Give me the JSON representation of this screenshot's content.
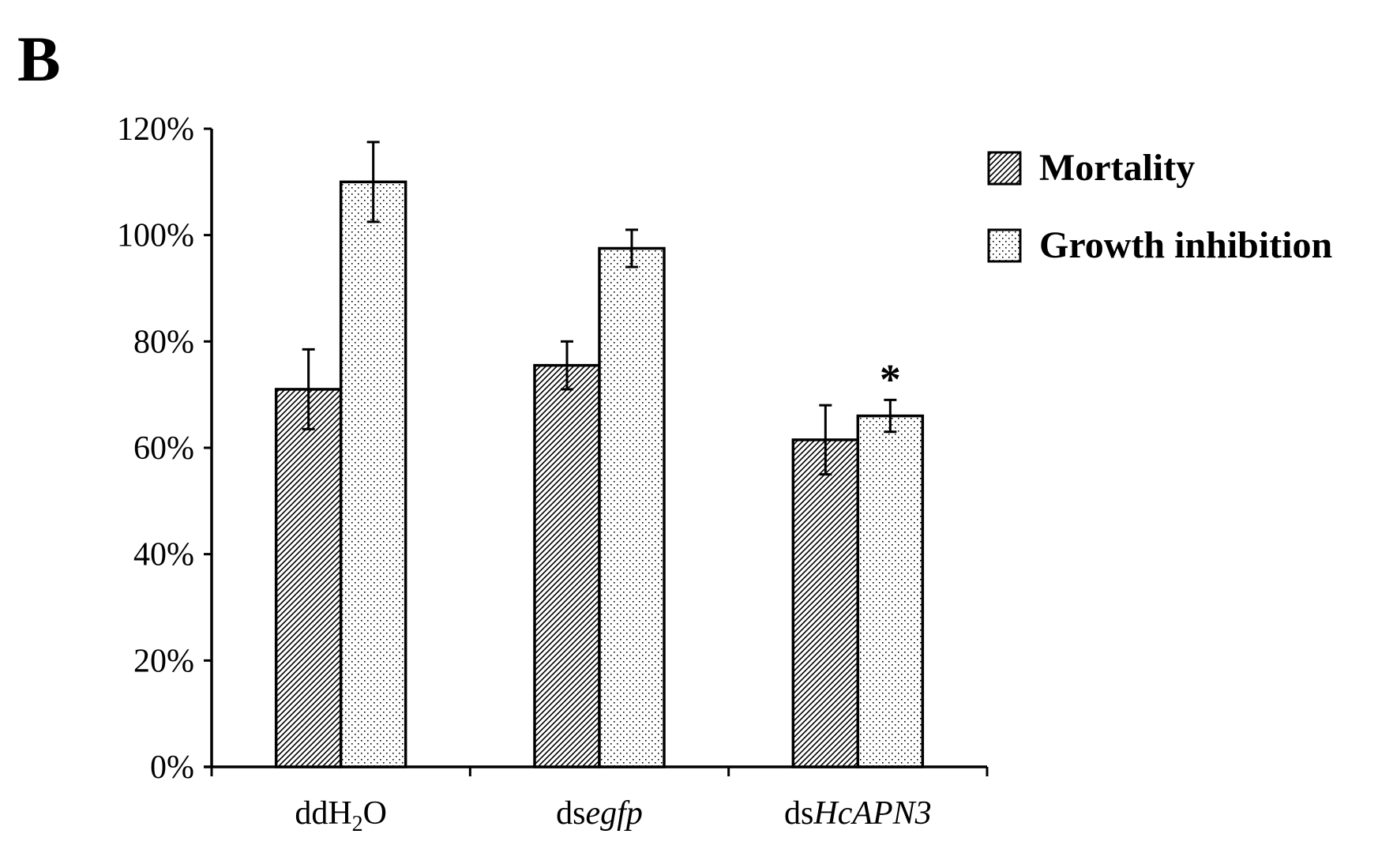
{
  "panel_label": "B",
  "chart_data": {
    "type": "bar",
    "categories": [
      {
        "prefix": "dd",
        "main": "H",
        "sub": "2",
        "suffix": "O",
        "italic": ""
      },
      {
        "prefix": "ds",
        "main": "",
        "sub": "",
        "suffix": "",
        "italic": "egfp"
      },
      {
        "prefix": "ds",
        "main": "",
        "sub": "",
        "suffix": "",
        "italic": "HcAPN3"
      }
    ],
    "series": [
      {
        "name": "Mortality",
        "pattern": "hatch",
        "values": [
          71,
          75.5,
          61.5
        ],
        "errors": [
          7.5,
          4.5,
          6.5
        ]
      },
      {
        "name": "Growth inhibition",
        "pattern": "dots",
        "values": [
          110,
          97.5,
          66
        ],
        "errors": [
          7.5,
          3.5,
          3
        ]
      }
    ],
    "significance": [
      {
        "category_index": 2,
        "series_index": 1,
        "label": "*"
      }
    ],
    "ylim": [
      0,
      120
    ],
    "y_ticks": [
      "0%",
      "20%",
      "40%",
      "60%",
      "80%",
      "100%",
      "120%"
    ],
    "y_tick_values": [
      0,
      20,
      40,
      60,
      80,
      100,
      120
    ],
    "legend_position": "top-right",
    "grid": false,
    "xlabel": "",
    "ylabel": "",
    "colors": {
      "bar_fill": "#ffffff",
      "pattern_ink": "#000000",
      "axis": "#000000"
    }
  }
}
